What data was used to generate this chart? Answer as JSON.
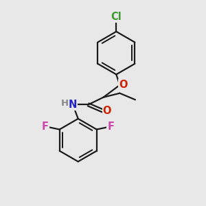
{
  "bg_color": "#e8e8e8",
  "bond_color": "#1a1a1a",
  "bond_width": 1.6,
  "atom_colors": {
    "Cl": "#3a9a2f",
    "O": "#cc2200",
    "N": "#2222cc",
    "F": "#cc44aa",
    "H": "#888888",
    "C": "#1a1a1a"
  },
  "font_size": 10.5,
  "small_font": 8.5
}
